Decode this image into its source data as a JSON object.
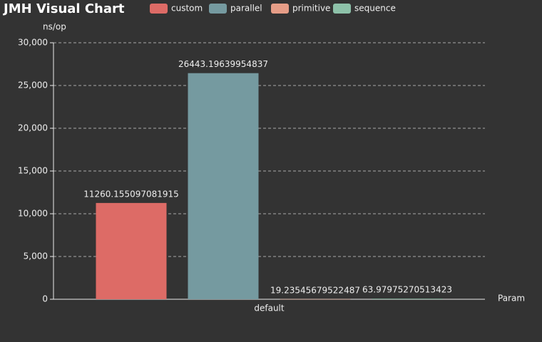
{
  "chart_data": {
    "type": "bar",
    "title": "JMH Visual Chart",
    "y_label": "ns/op",
    "x_label": "Param",
    "categories": [
      "default"
    ],
    "series": [
      {
        "name": "custom",
        "color": "#dd6b66",
        "values": [
          11260.155097081915
        ]
      },
      {
        "name": "parallel",
        "color": "#759aa0",
        "values": [
          26443.19639954837
        ]
      },
      {
        "name": "primitive",
        "color": "#e69d87",
        "values": [
          19.23545679522487
        ]
      },
      {
        "name": "sequence",
        "color": "#8dc1a9",
        "values": [
          63.97975270513423
        ]
      }
    ],
    "ylim": [
      0,
      30000
    ],
    "yticks": [
      0,
      {
        "value": 5000,
        "label": "5,000"
      },
      {
        "value": 10000,
        "label": "10,000"
      },
      {
        "value": 15000,
        "label": "15,000"
      },
      {
        "value": 20000,
        "label": "20,000"
      },
      {
        "value": 25000,
        "label": "25,000"
      },
      {
        "value": 30000,
        "label": "30,000"
      }
    ],
    "grid": true,
    "legend": "top"
  }
}
